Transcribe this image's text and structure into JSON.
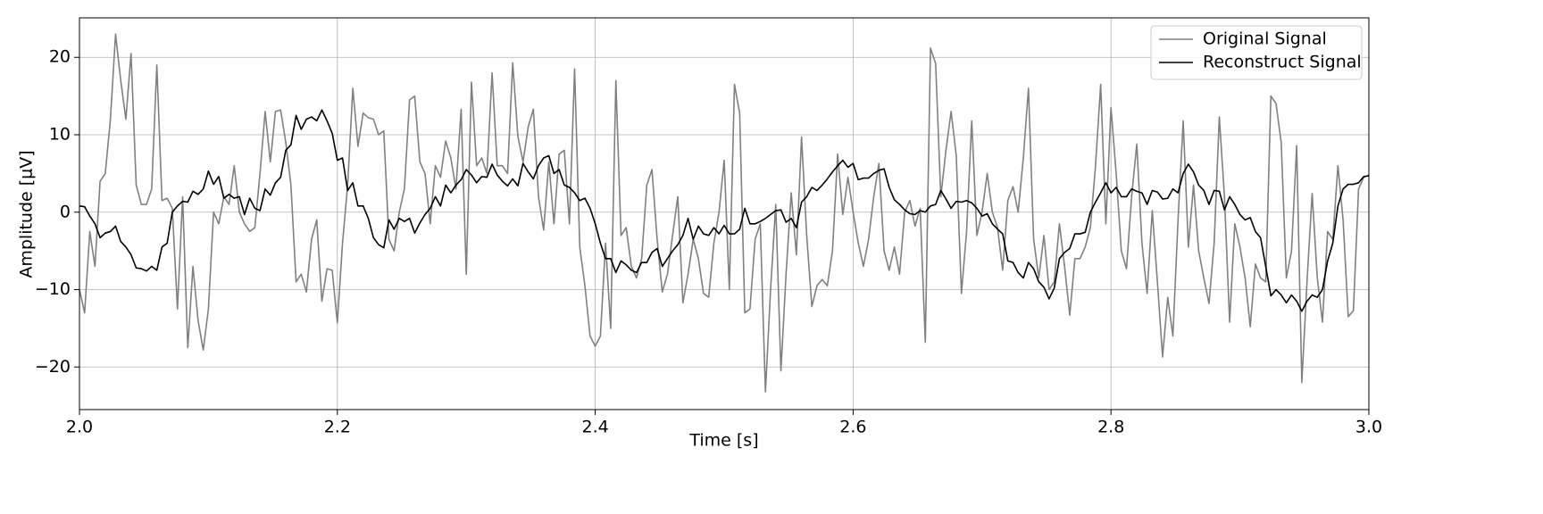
{
  "chart_data": {
    "type": "line",
    "xlabel": "Time [s]",
    "ylabel": "Amplitude [μV]",
    "x": [
      2,
      2.004,
      2.008,
      2.012,
      2.016,
      2.02,
      2.024,
      2.028,
      2.032,
      2.036,
      2.04,
      2.044,
      2.048,
      2.052,
      2.056,
      2.06,
      2.064,
      2.068,
      2.072,
      2.076,
      2.08,
      2.084,
      2.088,
      2.092,
      2.096,
      2.1,
      2.104,
      2.108,
      2.112,
      2.116,
      2.12,
      2.124,
      2.128,
      2.132,
      2.136,
      2.14,
      2.144,
      2.148,
      2.152,
      2.156,
      2.16,
      2.164,
      2.168,
      2.172,
      2.176,
      2.18,
      2.184,
      2.188,
      2.192,
      2.196,
      2.2,
      2.204,
      2.208,
      2.212,
      2.216,
      2.22,
      2.224,
      2.228,
      2.232,
      2.236,
      2.24,
      2.244,
      2.248,
      2.252,
      2.256,
      2.26,
      2.264,
      2.268,
      2.272,
      2.276,
      2.28,
      2.284,
      2.288,
      2.292,
      2.296,
      2.3,
      2.304,
      2.308,
      2.312,
      2.316,
      2.32,
      2.324,
      2.328,
      2.332,
      2.336,
      2.34,
      2.344,
      2.348,
      2.352,
      2.356,
      2.36,
      2.364,
      2.368,
      2.372,
      2.376,
      2.38,
      2.384,
      2.388,
      2.392,
      2.396,
      2.4,
      2.404,
      2.408,
      2.412,
      2.416,
      2.42,
      2.424,
      2.428,
      2.432,
      2.436,
      2.44,
      2.444,
      2.448,
      2.452,
      2.456,
      2.46,
      2.464,
      2.468,
      2.472,
      2.476,
      2.48,
      2.484,
      2.488,
      2.492,
      2.496,
      2.5,
      2.504,
      2.508,
      2.512,
      2.516,
      2.52,
      2.524,
      2.528,
      2.532,
      2.536,
      2.54,
      2.544,
      2.548,
      2.552,
      2.556,
      2.56,
      2.564,
      2.568,
      2.572,
      2.576,
      2.58,
      2.584,
      2.588,
      2.592,
      2.596,
      2.6,
      2.604,
      2.608,
      2.612,
      2.616,
      2.62,
      2.624,
      2.628,
      2.632,
      2.636,
      2.64,
      2.644,
      2.648,
      2.652,
      2.656,
      2.66,
      2.664,
      2.668,
      2.672,
      2.676,
      2.68,
      2.684,
      2.688,
      2.692,
      2.696,
      2.7,
      2.704,
      2.708,
      2.712,
      2.716,
      2.72,
      2.724,
      2.728,
      2.732,
      2.736,
      2.74,
      2.744,
      2.748,
      2.752,
      2.756,
      2.76,
      2.764,
      2.768,
      2.772,
      2.776,
      2.78,
      2.784,
      2.788,
      2.792,
      2.796,
      2.8,
      2.804,
      2.808,
      2.812,
      2.816,
      2.82,
      2.824,
      2.828,
      2.832,
      2.836,
      2.84,
      2.844,
      2.848,
      2.852,
      2.856,
      2.86,
      2.864,
      2.868,
      2.872,
      2.876,
      2.88,
      2.884,
      2.888,
      2.892,
      2.896,
      2.9,
      2.904,
      2.908,
      2.912,
      2.916,
      2.92,
      2.924,
      2.928,
      2.932,
      2.936,
      2.94,
      2.944,
      2.948,
      2.952,
      2.956,
      2.96,
      2.964,
      2.968,
      2.972,
      2.976,
      2.98,
      2.984,
      2.988,
      2.992,
      2.996,
      3
    ],
    "series": [
      {
        "name": "Original Signal",
        "color": "#808080",
        "values": [
          -10,
          -13,
          -2.5,
          -7,
          4,
          5,
          12,
          23,
          17,
          12,
          20.5,
          3.5,
          1,
          1,
          3,
          19,
          1.5,
          1.8,
          0.5,
          -12.5,
          2,
          -17.5,
          -7,
          -14,
          -17.8,
          -12.5,
          0,
          -1.5,
          2,
          1,
          6,
          0,
          -1.5,
          -2.5,
          -2,
          5,
          13,
          6.5,
          13,
          13.2,
          9,
          3.5,
          -9,
          -8,
          -10.3,
          -3.5,
          -1,
          -11.5,
          -7.3,
          -7.5,
          -14.3,
          -4,
          3.5,
          16,
          8.5,
          12.8,
          12.2,
          12,
          10,
          10.5,
          -3.5,
          -5,
          0,
          3,
          14.5,
          15,
          6.5,
          5,
          -1.5,
          6,
          4.5,
          9.2,
          7,
          3,
          13.3,
          -8,
          16.8,
          6,
          7,
          5,
          18,
          6,
          6,
          5,
          19.3,
          9.8,
          6.5,
          11,
          13.3,
          2,
          -2.3,
          6.5,
          -1.5,
          7.5,
          8,
          -1.5,
          18.5,
          -4.5,
          -9.5,
          -16,
          -17.3,
          -16,
          -4,
          -15,
          17,
          -3,
          -2,
          -7,
          -8.5,
          -6,
          3.5,
          5.5,
          -3.5,
          -10.3,
          -8,
          -3,
          2,
          -11.7,
          -8,
          -3.5,
          -6,
          -10.5,
          -11,
          -4,
          0,
          6.7,
          -10,
          16.5,
          12.8,
          -13,
          -12.5,
          -3.5,
          -1.5,
          -23.2,
          -10,
          1,
          -20.5,
          -8,
          2.5,
          -5.5,
          9.7,
          -3,
          -12.2,
          -9.5,
          -8.7,
          -9.5,
          -5,
          7.5,
          -0.3,
          4.5,
          0,
          -4,
          -7,
          -3.5,
          2,
          6.3,
          -5,
          -7.5,
          -4.5,
          -8,
          0,
          1.5,
          -1.8,
          0.5,
          -16.8,
          21.2,
          19.2,
          2,
          8,
          13,
          7.3,
          -10.5,
          -2.5,
          11.8,
          -3,
          0,
          5,
          0,
          -2,
          -7.5,
          1.5,
          3.3,
          0,
          7,
          16,
          -3.5,
          -8.5,
          -3,
          -10,
          -9,
          -1.5,
          -7,
          -13.3,
          -6,
          -6,
          -4.5,
          -2,
          6,
          16.5,
          -1.5,
          13.5,
          5,
          -5,
          -7.3,
          2,
          8.8,
          -4,
          -10.5,
          0.2,
          -9,
          -18.7,
          -11,
          -16,
          -1,
          11.8,
          -4.5,
          3.5,
          -5,
          -8.5,
          -11.8,
          -4,
          12.3,
          2,
          -14.2,
          -1.5,
          -4.5,
          -8.5,
          -14.8,
          -6.7,
          -8.5,
          -9,
          15,
          14,
          9,
          -8.5,
          -5,
          8.6,
          -22,
          -9,
          2.4,
          -8.5,
          -14.2,
          -2.5,
          -3.5,
          6,
          -1,
          -13.5,
          -12.7,
          3,
          4.5,
          4.8
        ]
      },
      {
        "name": "Reconstruct Signal",
        "color": "#000000",
        "values": [
          0.8,
          0.7,
          -0.5,
          -1.5,
          -3.3,
          -2.7,
          -2.5,
          -1.8,
          -3.8,
          -4.5,
          -5.5,
          -7.2,
          -7.3,
          -7.6,
          -7,
          -7.5,
          -4.5,
          -4,
          0,
          0.8,
          1.4,
          1.3,
          2.7,
          2.3,
          3,
          5.3,
          3.6,
          4.6,
          1.8,
          2.3,
          1.8,
          2,
          -0.3,
          1.8,
          0.5,
          0.2,
          3,
          2.2,
          3.8,
          4.5,
          8,
          8.7,
          12.5,
          10.7,
          12,
          12.3,
          11.8,
          13.2,
          11.8,
          10.2,
          6.7,
          7,
          2.8,
          3.8,
          0.8,
          0.8,
          -0.8,
          -3.3,
          -4.2,
          -4.6,
          -1,
          -2.2,
          -0.8,
          -1.2,
          -0.8,
          -2.7,
          -1.4,
          -0.3,
          0.5,
          2,
          0.8,
          3.5,
          2.5,
          3.5,
          4.2,
          5.5,
          4.8,
          3.8,
          4.6,
          4.5,
          6.2,
          4.8,
          4,
          3.4,
          4.3,
          3.4,
          6.3,
          5.2,
          4.3,
          6,
          7,
          7.3,
          5,
          5.5,
          3.5,
          3.2,
          2.5,
          1.5,
          1.8,
          0.5,
          -1.5,
          -4,
          -6,
          -6,
          -7.8,
          -6.3,
          -6.8,
          -7.5,
          -7.8,
          -6.5,
          -6.5,
          -5.2,
          -4.7,
          -7,
          -6,
          -5,
          -4.2,
          -3,
          -0.8,
          -3.5,
          -1.8,
          -2.8,
          -3,
          -2,
          -2.8,
          -1.7,
          -2.8,
          -2.8,
          -2.2,
          0.5,
          -1.5,
          -1.5,
          -1.2,
          -0.8,
          -0.3,
          0.2,
          0.3,
          -1.3,
          -0.8,
          -2,
          1.3,
          2,
          3.2,
          2.8,
          3.5,
          4.3,
          5.2,
          6,
          6.7,
          5.8,
          6.3,
          4.2,
          4.4,
          4.4,
          5,
          5.4,
          5.6,
          3.2,
          1.6,
          1,
          0.3,
          -0.2,
          -0.3,
          0.2,
          0,
          0.8,
          1,
          2.8,
          1.7,
          0.5,
          1.4,
          1.3,
          1.5,
          1.2,
          0.5,
          -0.5,
          -0.2,
          -1.5,
          -2.2,
          -2.8,
          -6.3,
          -6.5,
          -7.8,
          -8.5,
          -6.5,
          -7.3,
          -9,
          -9.7,
          -11.2,
          -9.8,
          -6,
          -5.2,
          -4.7,
          -2.8,
          -2.8,
          -2.6,
          0,
          1.3,
          2.5,
          3.8,
          2.5,
          3.2,
          2,
          2,
          3,
          2.7,
          2.5,
          1,
          2.8,
          2.6,
          1.7,
          1.8,
          3,
          2.5,
          5,
          6.2,
          5.2,
          3.5,
          2.8,
          1,
          2.8,
          2.7,
          0.3,
          2,
          1,
          -0.3,
          -1,
          -0.7,
          -2.5,
          -3.3,
          -7,
          -10.8,
          -10,
          -10.7,
          -11.7,
          -10.7,
          -11.5,
          -12.8,
          -11.5,
          -10.7,
          -11,
          -10,
          -6.3,
          -4,
          0.8,
          3,
          3.6,
          3.6,
          3.8,
          4.6,
          4.7
        ]
      }
    ],
    "xlim": [
      2,
      3
    ],
    "xticks": [
      {
        "value": 2,
        "label": "2.0"
      },
      2.2,
      2.4,
      2.6,
      2.8,
      {
        "value": 3,
        "label": "3.0"
      }
    ],
    "ylim": [
      -25.5,
      25.1
    ],
    "yticks": [
      {
        "value": -20,
        "label": "−20"
      },
      {
        "value": -10,
        "label": "−10"
      },
      0,
      10,
      20
    ],
    "grid": true,
    "legend": "upper right"
  }
}
